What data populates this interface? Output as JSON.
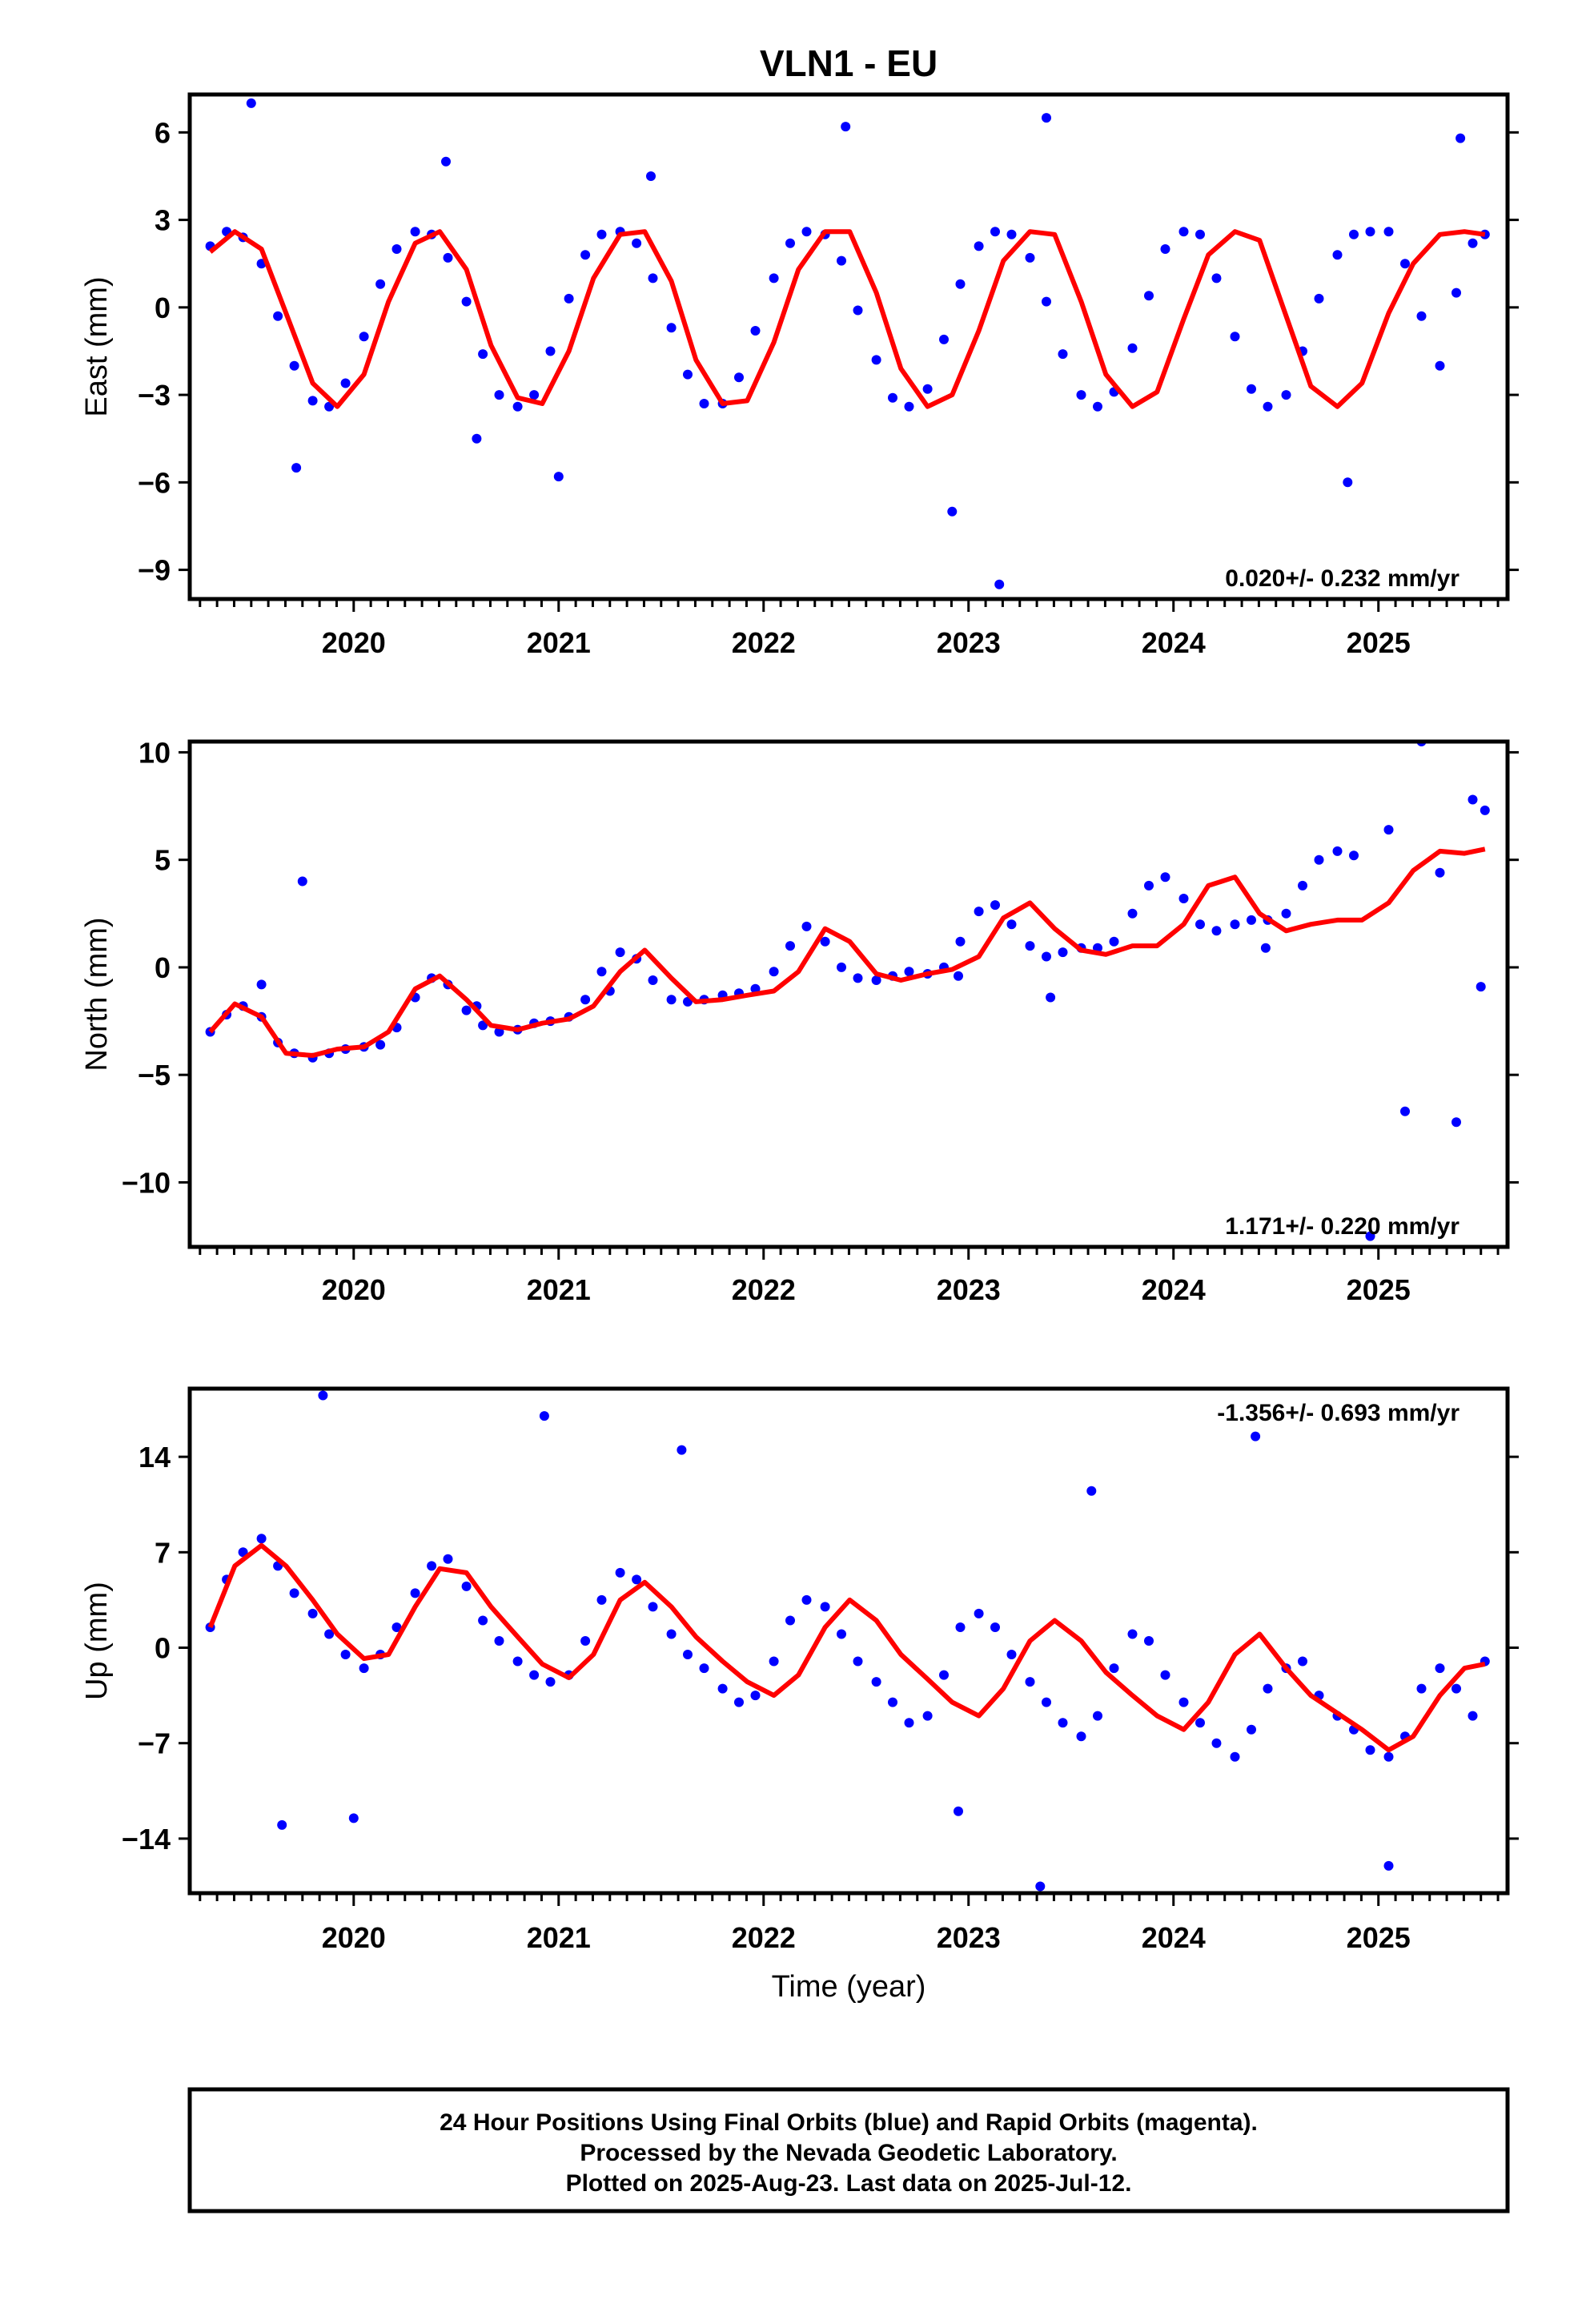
{
  "title": "VLN1 - EU",
  "xlabel": "Time (year)",
  "footer": {
    "line1": "24 Hour Positions Using Final Orbits (blue) and Rapid Orbits (magenta).",
    "line2": "Processed by the Nevada Geodetic Laboratory.",
    "line3": "Plotted on 2025-Aug-23. Last data on 2025-Jul-12."
  },
  "colors": {
    "points": "#0000ff",
    "fit": "#ff0000",
    "frame": "#000000"
  },
  "chart_data": [
    {
      "type": "scatter",
      "title": "VLN1 - EU",
      "ylabel": "East (mm)",
      "xlabel": "",
      "xlim": [
        2019.2,
        2025.63
      ],
      "ylim": [
        -10,
        7.3
      ],
      "xticks": [
        2020,
        2021,
        2022,
        2023,
        2024,
        2025
      ],
      "yticks": [
        -9,
        -6,
        -3,
        0,
        3,
        6
      ],
      "rate_label": "0.020+/- 0.232 mm/yr",
      "rate_position": "bottom-right",
      "grid": false,
      "series": [
        {
          "kind": "points",
          "x": [
            2019.3,
            2019.38,
            2019.46,
            2019.55,
            2019.63,
            2019.71,
            2019.8,
            2019.88,
            2019.96,
            2020.05,
            2020.13,
            2020.21,
            2020.3,
            2020.38,
            2020.46,
            2020.55,
            2020.63,
            2020.71,
            2020.8,
            2020.88,
            2020.96,
            2021.05,
            2021.13,
            2021.21,
            2021.3,
            2021.38,
            2021.46,
            2021.55,
            2021.63,
            2021.71,
            2021.8,
            2021.88,
            2021.96,
            2022.05,
            2022.13,
            2022.21,
            2022.3,
            2022.38,
            2022.46,
            2022.55,
            2022.63,
            2022.71,
            2022.8,
            2022.88,
            2022.96,
            2023.05,
            2023.13,
            2023.21,
            2023.3,
            2023.38,
            2023.46,
            2023.55,
            2023.63,
            2023.71,
            2023.8,
            2023.88,
            2023.96,
            2024.05,
            2024.13,
            2024.21,
            2024.3,
            2024.38,
            2024.46,
            2024.55,
            2024.63,
            2024.71,
            2024.8,
            2024.88,
            2024.96,
            2025.05,
            2025.13,
            2025.21,
            2025.3,
            2025.38,
            2025.46,
            2025.52,
            2019.72,
            2020.45,
            2020.6,
            2021.45,
            2022.4,
            2022.92,
            2023.38,
            2023.15,
            2019.5,
            2021.0,
            2024.85,
            2025.4
          ],
          "y": [
            2.1,
            2.6,
            2.4,
            1.5,
            -0.3,
            -2.0,
            -3.2,
            -3.4,
            -2.6,
            -1.0,
            0.8,
            2.0,
            2.6,
            2.5,
            1.7,
            0.2,
            -1.6,
            -3.0,
            -3.4,
            -3.0,
            -1.5,
            0.3,
            1.8,
            2.5,
            2.6,
            2.2,
            1.0,
            -0.7,
            -2.3,
            -3.3,
            -3.3,
            -2.4,
            -0.8,
            1.0,
            2.2,
            2.6,
            2.5,
            1.6,
            -0.1,
            -1.8,
            -3.1,
            -3.4,
            -2.8,
            -1.1,
            0.8,
            2.1,
            2.6,
            2.5,
            1.7,
            0.2,
            -1.6,
            -3.0,
            -3.4,
            -2.9,
            -1.4,
            0.4,
            2.0,
            2.6,
            2.5,
            1.0,
            -1.0,
            -2.8,
            -3.4,
            -3.0,
            -1.5,
            0.3,
            1.8,
            2.5,
            2.6,
            2.6,
            1.5,
            -0.3,
            -2.0,
            0.5,
            2.2,
            2.5,
            -5.5,
            5.0,
            -4.5,
            4.5,
            6.2,
            -7.0,
            6.5,
            -9.5,
            7.0,
            -5.8,
            -6.0,
            5.8
          ]
        },
        {
          "kind": "fit",
          "x": [
            2019.3,
            2019.42,
            2019.55,
            2019.67,
            2019.8,
            2019.92,
            2020.05,
            2020.17,
            2020.3,
            2020.42,
            2020.55,
            2020.67,
            2020.8,
            2020.92,
            2021.05,
            2021.17,
            2021.3,
            2021.42,
            2021.55,
            2021.67,
            2021.8,
            2021.92,
            2022.05,
            2022.17,
            2022.3,
            2022.42,
            2022.55,
            2022.67,
            2022.8,
            2022.92,
            2023.05,
            2023.17,
            2023.3,
            2023.42,
            2023.55,
            2023.67,
            2023.8,
            2023.92,
            2024.05,
            2024.17,
            2024.3,
            2024.42,
            2024.55,
            2024.67,
            2024.8,
            2024.92,
            2025.05,
            2025.17,
            2025.3,
            2025.42,
            2025.52
          ],
          "y": [
            1.9,
            2.6,
            2.0,
            -0.2,
            -2.6,
            -3.4,
            -2.3,
            0.2,
            2.2,
            2.6,
            1.3,
            -1.3,
            -3.1,
            -3.3,
            -1.5,
            1.0,
            2.5,
            2.6,
            0.9,
            -1.8,
            -3.3,
            -3.2,
            -1.2,
            1.3,
            2.6,
            2.6,
            0.5,
            -2.1,
            -3.4,
            -3.0,
            -0.8,
            1.6,
            2.6,
            2.5,
            0.2,
            -2.3,
            -3.4,
            -2.9,
            -0.4,
            1.8,
            2.6,
            2.3,
            -0.3,
            -2.7,
            -3.4,
            -2.6,
            -0.2,
            1.5,
            2.5,
            2.6,
            2.5
          ]
        }
      ]
    },
    {
      "type": "scatter",
      "title": "",
      "ylabel": "North (mm)",
      "xlabel": "",
      "xlim": [
        2019.2,
        2025.63
      ],
      "ylim": [
        -13,
        10.5
      ],
      "xticks": [
        2020,
        2021,
        2022,
        2023,
        2024,
        2025
      ],
      "yticks": [
        -10,
        -5,
        0,
        5,
        10
      ],
      "rate_label": "1.171+/- 0.220 mm/yr",
      "rate_position": "bottom-right",
      "grid": false,
      "series": [
        {
          "kind": "points",
          "x": [
            2019.3,
            2019.38,
            2019.46,
            2019.55,
            2019.63,
            2019.71,
            2019.8,
            2019.88,
            2019.96,
            2020.05,
            2020.13,
            2020.21,
            2020.3,
            2020.38,
            2020.46,
            2020.55,
            2020.63,
            2020.71,
            2020.8,
            2020.88,
            2020.96,
            2021.05,
            2021.13,
            2021.21,
            2021.3,
            2021.38,
            2021.46,
            2021.55,
            2021.63,
            2021.71,
            2021.8,
            2021.88,
            2021.96,
            2022.05,
            2022.13,
            2022.21,
            2022.3,
            2022.38,
            2022.46,
            2022.55,
            2022.63,
            2022.71,
            2022.8,
            2022.88,
            2022.96,
            2023.05,
            2023.13,
            2023.21,
            2023.3,
            2023.38,
            2023.46,
            2023.55,
            2023.63,
            2023.71,
            2023.8,
            2023.88,
            2023.96,
            2024.05,
            2024.13,
            2024.21,
            2024.3,
            2024.38,
            2024.46,
            2024.55,
            2024.63,
            2024.71,
            2024.8,
            2024.88,
            2024.96,
            2025.05,
            2025.13,
            2025.21,
            2025.3,
            2025.38,
            2025.46,
            2025.52,
            2019.75,
            2020.6,
            2022.95,
            2025.5,
            2019.55,
            2021.25,
            2023.4,
            2024.45
          ],
          "y": [
            -3.0,
            -2.2,
            -1.8,
            -2.3,
            -3.5,
            -4.0,
            -4.2,
            -4.0,
            -3.8,
            -3.7,
            -3.6,
            -2.8,
            -1.4,
            -0.5,
            -0.8,
            -2.0,
            -2.7,
            -3.0,
            -2.9,
            -2.6,
            -2.5,
            -2.3,
            -1.5,
            -0.2,
            0.7,
            0.4,
            -0.6,
            -1.5,
            -1.6,
            -1.5,
            -1.3,
            -1.2,
            -1.0,
            -0.2,
            1.0,
            1.9,
            1.2,
            0.0,
            -0.5,
            -0.6,
            -0.4,
            -0.2,
            -0.3,
            0.0,
            1.2,
            2.6,
            2.9,
            2.0,
            1.0,
            0.5,
            0.7,
            0.9,
            0.9,
            1.2,
            2.5,
            3.8,
            4.2,
            3.2,
            2.0,
            1.7,
            2.0,
            2.2,
            2.2,
            2.5,
            3.8,
            5.0,
            5.4,
            5.2,
            -12.5,
            6.4,
            -6.7,
            10.5,
            4.4,
            -7.2,
            7.8,
            7.3,
            4.0,
            -1.8,
            -0.4,
            -0.9,
            -0.8,
            -1.1,
            -1.4,
            0.9
          ]
        },
        {
          "kind": "fit",
          "x": [
            2019.3,
            2019.42,
            2019.55,
            2019.67,
            2019.8,
            2019.92,
            2020.05,
            2020.17,
            2020.3,
            2020.42,
            2020.55,
            2020.67,
            2020.8,
            2020.92,
            2021.05,
            2021.17,
            2021.3,
            2021.42,
            2021.55,
            2021.67,
            2021.8,
            2021.92,
            2022.05,
            2022.17,
            2022.3,
            2022.42,
            2022.55,
            2022.67,
            2022.8,
            2022.92,
            2023.05,
            2023.17,
            2023.3,
            2023.42,
            2023.55,
            2023.67,
            2023.8,
            2023.92,
            2024.05,
            2024.17,
            2024.3,
            2024.42,
            2024.55,
            2024.67,
            2024.8,
            2024.92,
            2025.05,
            2025.17,
            2025.3,
            2025.42,
            2025.52
          ],
          "y": [
            -3.0,
            -1.7,
            -2.3,
            -4.0,
            -4.1,
            -3.8,
            -3.7,
            -3.0,
            -1.0,
            -0.4,
            -1.5,
            -2.7,
            -2.9,
            -2.6,
            -2.4,
            -1.8,
            -0.2,
            0.8,
            -0.5,
            -1.6,
            -1.5,
            -1.3,
            -1.1,
            -0.2,
            1.8,
            1.2,
            -0.3,
            -0.6,
            -0.3,
            -0.1,
            0.5,
            2.3,
            3.0,
            1.8,
            0.8,
            0.6,
            1.0,
            1.0,
            2.0,
            3.8,
            4.2,
            2.5,
            1.7,
            2.0,
            2.2,
            2.2,
            3.0,
            4.5,
            5.4,
            5.3,
            5.5
          ]
        }
      ]
    },
    {
      "type": "scatter",
      "title": "",
      "ylabel": "Up (mm)",
      "xlabel": "Time (year)",
      "xlim": [
        2019.2,
        2025.63
      ],
      "ylim": [
        -18,
        19
      ],
      "xticks": [
        2020,
        2021,
        2022,
        2023,
        2024,
        2025
      ],
      "yticks": [
        -14,
        -7,
        0,
        7,
        14
      ],
      "rate_label": "-1.356+/- 0.693 mm/yr",
      "rate_position": "top-right",
      "grid": false,
      "series": [
        {
          "kind": "points",
          "x": [
            2019.3,
            2019.38,
            2019.46,
            2019.55,
            2019.63,
            2019.71,
            2019.8,
            2019.88,
            2019.96,
            2020.05,
            2020.13,
            2020.21,
            2020.3,
            2020.38,
            2020.46,
            2020.55,
            2020.63,
            2020.71,
            2020.8,
            2020.88,
            2020.96,
            2021.05,
            2021.13,
            2021.21,
            2021.3,
            2021.38,
            2021.46,
            2021.55,
            2021.63,
            2021.71,
            2021.8,
            2021.88,
            2021.96,
            2022.05,
            2022.13,
            2022.21,
            2022.3,
            2022.38,
            2022.46,
            2022.55,
            2022.63,
            2022.71,
            2022.8,
            2022.88,
            2022.96,
            2023.05,
            2023.13,
            2023.21,
            2023.3,
            2023.38,
            2023.46,
            2023.55,
            2023.63,
            2023.71,
            2023.8,
            2023.88,
            2023.96,
            2024.05,
            2024.13,
            2024.21,
            2024.3,
            2024.38,
            2024.46,
            2024.55,
            2024.63,
            2024.71,
            2024.8,
            2024.88,
            2024.96,
            2025.05,
            2025.13,
            2025.21,
            2025.3,
            2025.38,
            2025.46,
            2025.52,
            2019.85,
            2020.93,
            2023.35,
            2025.05,
            2024.4,
            2019.65,
            2021.6,
            2020.0,
            2022.95,
            2023.6
          ],
          "y": [
            1.5,
            5.0,
            7.0,
            8.0,
            6.0,
            4.0,
            2.5,
            1.0,
            -0.5,
            -1.5,
            -0.5,
            1.5,
            4.0,
            6.0,
            6.5,
            4.5,
            2.0,
            0.5,
            -1.0,
            -2.0,
            -2.5,
            -2.0,
            0.5,
            3.5,
            5.5,
            5.0,
            3.0,
            1.0,
            -0.5,
            -1.5,
            -3.0,
            -4.0,
            -3.5,
            -1.0,
            2.0,
            3.5,
            3.0,
            1.0,
            -1.0,
            -2.5,
            -4.0,
            -5.5,
            -5.0,
            -2.0,
            1.5,
            2.5,
            1.5,
            -0.5,
            -2.5,
            -4.0,
            -5.5,
            -6.5,
            -5.0,
            -1.5,
            1.0,
            0.5,
            -2.0,
            -4.0,
            -5.5,
            -7.0,
            -8.0,
            -6.0,
            -3.0,
            -1.5,
            -1.0,
            -3.5,
            -5.0,
            -6.0,
            -7.5,
            -8.0,
            -6.5,
            -3.0,
            -1.5,
            -3.0,
            -5.0,
            -1.0,
            18.5,
            17.0,
            -17.5,
            -16.0,
            15.5,
            -13.0,
            14.5,
            -12.5,
            -12.0,
            11.5
          ]
        },
        {
          "kind": "fit",
          "x": [
            2019.3,
            2019.42,
            2019.55,
            2019.67,
            2019.8,
            2019.92,
            2020.05,
            2020.17,
            2020.3,
            2020.42,
            2020.55,
            2020.67,
            2020.8,
            2020.92,
            2021.05,
            2021.17,
            2021.3,
            2021.42,
            2021.55,
            2021.67,
            2021.8,
            2021.92,
            2022.05,
            2022.17,
            2022.3,
            2022.42,
            2022.55,
            2022.67,
            2022.8,
            2022.92,
            2023.05,
            2023.17,
            2023.3,
            2023.42,
            2023.55,
            2023.67,
            2023.8,
            2023.92,
            2024.05,
            2024.17,
            2024.3,
            2024.42,
            2024.55,
            2024.67,
            2024.8,
            2024.92,
            2025.05,
            2025.17,
            2025.3,
            2025.42,
            2025.52
          ],
          "y": [
            1.5,
            6.0,
            7.5,
            6.0,
            3.5,
            1.0,
            -0.8,
            -0.5,
            3.0,
            5.8,
            5.5,
            3.0,
            0.8,
            -1.2,
            -2.2,
            -0.5,
            3.5,
            4.8,
            3.0,
            0.8,
            -1.0,
            -2.5,
            -3.5,
            -2.0,
            1.5,
            3.5,
            2.0,
            -0.5,
            -2.3,
            -4.0,
            -5.0,
            -3.0,
            0.5,
            2.0,
            0.5,
            -1.8,
            -3.5,
            -5.0,
            -6.0,
            -4.0,
            -0.5,
            1.0,
            -1.5,
            -3.5,
            -4.8,
            -6.0,
            -7.5,
            -6.5,
            -3.5,
            -1.5,
            -1.2
          ]
        }
      ]
    }
  ]
}
